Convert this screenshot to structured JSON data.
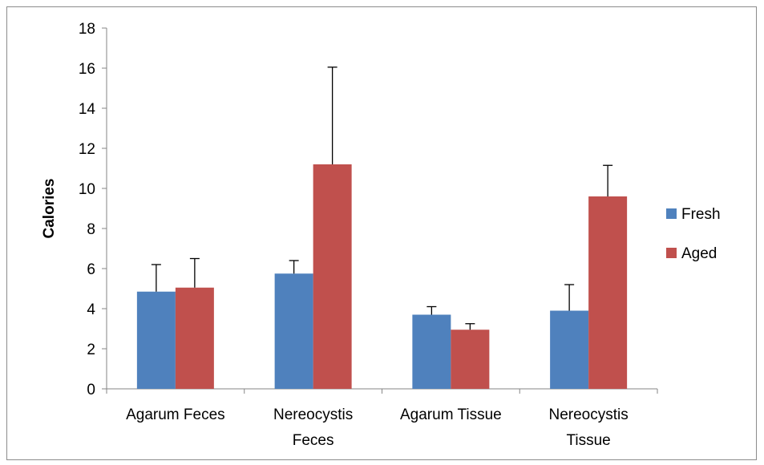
{
  "chart_data": {
    "type": "bar",
    "title": "",
    "xlabel": "",
    "ylabel": "Calories",
    "ylim": [
      0,
      18
    ],
    "yticks": [
      0,
      2,
      4,
      6,
      8,
      10,
      12,
      14,
      16,
      18
    ],
    "grid": false,
    "legend_position": "right",
    "categories": [
      [
        "Agarum Feces"
      ],
      [
        "Nereocystis",
        "Feces"
      ],
      [
        "Agarum Tissue"
      ],
      [
        "Nereocystis",
        "Tissue"
      ]
    ],
    "series": [
      {
        "name": "Fresh",
        "color": "#4f81bd",
        "values": [
          4.85,
          5.75,
          3.7,
          3.9
        ],
        "error_upper": [
          1.35,
          0.65,
          0.4,
          1.3
        ]
      },
      {
        "name": "Aged",
        "color": "#c0504d",
        "values": [
          5.05,
          11.2,
          2.95,
          9.6
        ],
        "error_upper": [
          1.45,
          4.85,
          0.3,
          1.55
        ]
      }
    ]
  }
}
